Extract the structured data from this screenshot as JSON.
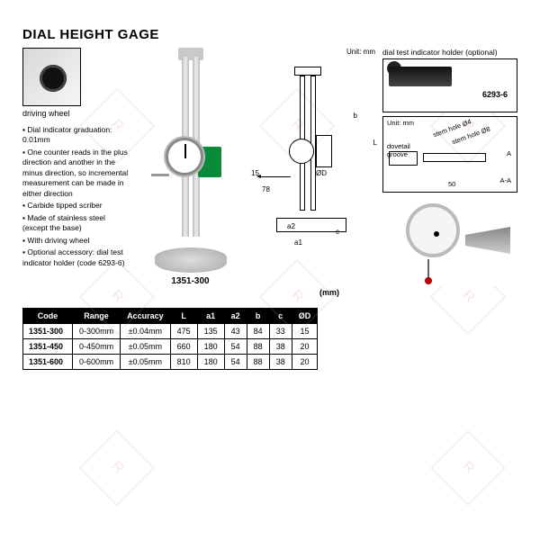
{
  "title": "DIAL HEIGHT GAGE",
  "driving_wheel_label": "driving wheel",
  "bullets": [
    "Dial indicator graduation: 0.01mm",
    "One counter reads in the plus direction and another in the minus direction, so incremental measurement can be made in either direction",
    "Carbide tipped scriber",
    "Made of stainless steel (except the base)",
    "With driving wheel",
    "Optional accessory: dial test indicator holder (code 6293-6)"
  ],
  "model_label": "1351-300",
  "drawing": {
    "unit": "Unit: mm",
    "dim_78": "78",
    "dim_15": "15",
    "dim_L": "L",
    "dim_b": "b",
    "dim_a1": "a1",
    "dim_a2": "a2",
    "dim_c": "c",
    "dim_od": "ØD"
  },
  "holder": {
    "title": "dial test indicator holder (optional)",
    "code": "6293-6",
    "unit": "Unit: mm",
    "dovetail": "dovetail\ngroove",
    "stem4": "stem hole Ø4",
    "stem8": "stem hole Ø8",
    "d50": "50",
    "aa": "A-A",
    "a_arrow": "A"
  },
  "table": {
    "unit_label": "(mm)",
    "columns": [
      "Code",
      "Range",
      "Accuracy",
      "L",
      "a1",
      "a2",
      "b",
      "c",
      "ØD"
    ],
    "rows": [
      [
        "1351-300",
        "0-300mm",
        "±0.04mm",
        "475",
        "135",
        "43",
        "84",
        "33",
        "15"
      ],
      [
        "1351-450",
        "0-450mm",
        "±0.05mm",
        "660",
        "180",
        "54",
        "88",
        "38",
        "20"
      ],
      [
        "1351-600",
        "0-600mm",
        "±0.05mm",
        "810",
        "180",
        "54",
        "88",
        "38",
        "20"
      ]
    ]
  },
  "watermark_text": "R"
}
